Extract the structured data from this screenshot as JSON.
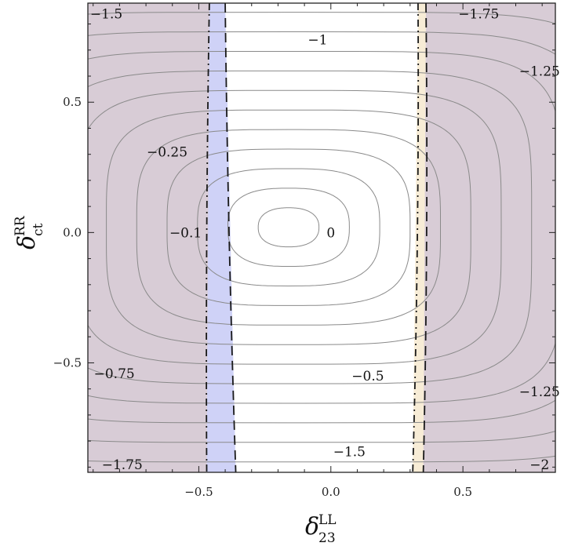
{
  "chart_data": {
    "type": "contour",
    "title": "",
    "xlabel": {
      "symbol": "δ",
      "superscript": "LL",
      "subscript": "23"
    },
    "ylabel": {
      "symbol": "δ",
      "superscript": "RR",
      "subscript": "ct"
    },
    "xlim": [
      -0.92,
      0.85
    ],
    "ylim": [
      -0.92,
      0.88
    ],
    "x_ticks": [
      {
        "value": -0.5,
        "label": "−0.5"
      },
      {
        "value": 0.0,
        "label": "0.0"
      },
      {
        "value": 0.5,
        "label": "0.5"
      }
    ],
    "y_ticks": [
      {
        "value": -0.5,
        "label": "−0.5"
      },
      {
        "value": 0.0,
        "label": "0.0"
      },
      {
        "value": 0.5,
        "label": "0.5"
      }
    ],
    "function_center": {
      "x": -0.16,
      "y": 0.02
    },
    "contour_levels": [
      0,
      -0.1,
      -0.25,
      -0.5,
      -0.75,
      -1,
      -1.25,
      -1.5,
      -1.75,
      -2
    ],
    "contour_annotations": [
      {
        "text": "0",
        "x": 0.0,
        "y": 0.0
      },
      {
        "text": "−0.1",
        "x": -0.55,
        "y": 0.0
      },
      {
        "text": "−0.25",
        "x": -0.62,
        "y": 0.31
      },
      {
        "text": "−0.5",
        "x": 0.14,
        "y": -0.55
      },
      {
        "text": "−0.75",
        "x": -0.82,
        "y": -0.54
      },
      {
        "text": "−1",
        "x": -0.05,
        "y": 0.74
      },
      {
        "text": "−1.25",
        "x": 0.79,
        "y": 0.62
      },
      {
        "text": "−1.25",
        "x": 0.79,
        "y": -0.61
      },
      {
        "text": "−1.5",
        "x": -0.85,
        "y": 0.84
      },
      {
        "text": "−1.5",
        "x": 0.07,
        "y": -0.84
      },
      {
        "text": "−1.75",
        "x": 0.56,
        "y": 0.84
      },
      {
        "text": "−1.75",
        "x": -0.79,
        "y": -0.89
      },
      {
        "text": "−2",
        "x": 0.79,
        "y": -0.89
      }
    ],
    "excluded_regions": [
      {
        "side": "left",
        "boundary_top_x": -0.45,
        "boundary_bottom_x": -0.41
      },
      {
        "side": "right",
        "boundary_top_x": 0.33,
        "boundary_bottom_x": 0.35
      }
    ],
    "bands": [
      {
        "color": "#cfd2f7",
        "inner_top_x": -0.4,
        "inner_bottom_x": -0.36,
        "outer_top_x": -0.46,
        "outer_bottom_x": -0.47
      },
      {
        "color": "#f7ecd6",
        "inner_top_x": 0.33,
        "inner_bottom_x": 0.31,
        "outer_top_x": 0.36,
        "outer_bottom_x": 0.35
      }
    ],
    "colors": {
      "excluded": "#d8ccd6",
      "contour": "#8a8a8a",
      "frame": "#222222",
      "band_left": "#cfd2f7",
      "band_right": "#f7ecd6"
    },
    "grid": false,
    "legend": "none"
  }
}
